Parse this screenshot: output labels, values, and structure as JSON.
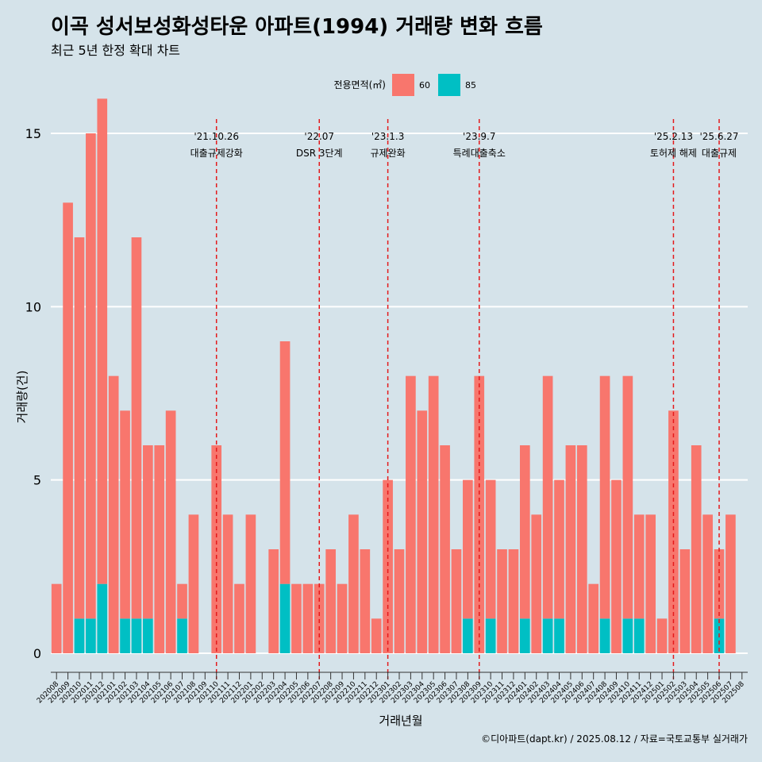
{
  "title": "이곡 성서보성화성타운 아파트(1994) 거래량 변화 흐름",
  "subtitle": "최근 5년 한정 확대 차트",
  "caption": "©디아파트(dapt.kr) / 2025.08.12 / 자료=국토교통부 실거래가",
  "colors": {
    "background": "#d5e3ea",
    "series_60": "#f8766d",
    "series_85": "#00bfc4",
    "event_line": "#e41a1c",
    "grid": "#ffffff"
  },
  "chart_data": {
    "type": "bar",
    "xlabel": "거래년월",
    "ylabel": "거래량(건)",
    "ylim": [
      0,
      15
    ],
    "yticks": [
      0,
      5,
      10,
      15
    ],
    "grid": true,
    "legend": {
      "title": "전용면적(㎡)",
      "position": "top"
    },
    "categories": [
      "202008",
      "202009",
      "202010",
      "202011",
      "202012",
      "202101",
      "202102",
      "202103",
      "202104",
      "202105",
      "202106",
      "202107",
      "202108",
      "202109",
      "202110",
      "202111",
      "202112",
      "202201",
      "202202",
      "202203",
      "202204",
      "202205",
      "202206",
      "202207",
      "202208",
      "202209",
      "202210",
      "202211",
      "202212",
      "202301",
      "202302",
      "202303",
      "202304",
      "202305",
      "202306",
      "202307",
      "202308",
      "202309",
      "202310",
      "202311",
      "202312",
      "202401",
      "202402",
      "202403",
      "202404",
      "202405",
      "202406",
      "202407",
      "202408",
      "202409",
      "202410",
      "202411",
      "202412",
      "202501",
      "202502",
      "202503",
      "202504",
      "202505",
      "202506",
      "202507",
      "202508"
    ],
    "series": [
      {
        "name": "60",
        "values": [
          2,
          13,
          11,
          14,
          14,
          8,
          6,
          11,
          5,
          6,
          7,
          1,
          4,
          0,
          6,
          4,
          2,
          4,
          0,
          3,
          7,
          2,
          2,
          2,
          3,
          2,
          4,
          3,
          1,
          5,
          3,
          8,
          7,
          8,
          6,
          3,
          4,
          8,
          4,
          3,
          3,
          5,
          4,
          7,
          4,
          6,
          6,
          2,
          7,
          5,
          7,
          3,
          4,
          1,
          7,
          3,
          6,
          4,
          2,
          4,
          0
        ]
      },
      {
        "name": "85",
        "values": [
          0,
          0,
          1,
          1,
          2,
          0,
          1,
          1,
          1,
          0,
          0,
          1,
          0,
          0,
          0,
          0,
          0,
          0,
          0,
          0,
          2,
          0,
          0,
          0,
          0,
          0,
          0,
          0,
          0,
          0,
          0,
          0,
          0,
          0,
          0,
          0,
          1,
          0,
          1,
          0,
          0,
          1,
          0,
          1,
          1,
          0,
          0,
          0,
          1,
          0,
          1,
          1,
          0,
          0,
          0,
          0,
          0,
          0,
          1,
          0,
          0
        ]
      }
    ],
    "events": [
      {
        "date": "'21.10.26",
        "label": "대출규제강화",
        "at": "202110"
      },
      {
        "date": "'22.07",
        "label": "DSR 3단계",
        "at": "202207"
      },
      {
        "date": "'23.1.3",
        "label": "규제완화",
        "at": "202301"
      },
      {
        "date": "'23.9.7",
        "label": "특례대출축소",
        "at": "202309"
      },
      {
        "date": "'25.2.13",
        "label": "토허제 해제",
        "at": "202502"
      },
      {
        "date": "'25.6.27",
        "label": "대출규제",
        "at": "202506"
      }
    ]
  }
}
